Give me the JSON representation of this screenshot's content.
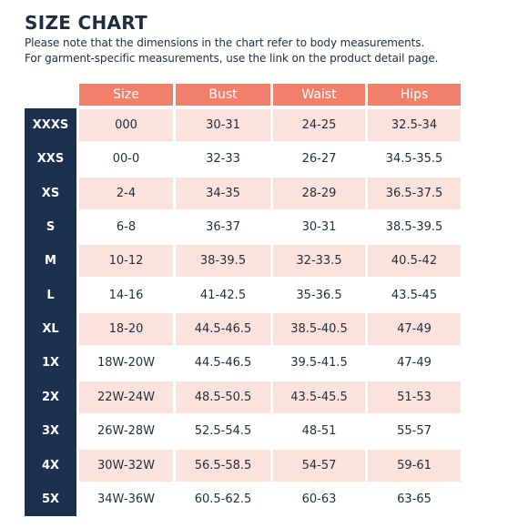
{
  "title": "SIZE CHART",
  "note_line1": "Please note that the dimensions in the chart refer to body measurements.",
  "note_line2": "For garment-specific measurements, use the link on the product detail page.",
  "colors": {
    "header_bg": "#f0806c",
    "row_label_bg": "#1c3050",
    "stripe_bg": "#fbe2dc"
  },
  "columns": [
    "Size",
    "Bust",
    "Waist",
    "Hips"
  ],
  "rows": [
    {
      "label": "XXXS",
      "size": "000",
      "bust": "30-31",
      "waist": "24-25",
      "hips": "32.5-34"
    },
    {
      "label": "XXS",
      "size": "00-0",
      "bust": "32-33",
      "waist": "26-27",
      "hips": "34.5-35.5"
    },
    {
      "label": "XS",
      "size": "2-4",
      "bust": "34-35",
      "waist": "28-29",
      "hips": "36.5-37.5"
    },
    {
      "label": "S",
      "size": "6-8",
      "bust": "36-37",
      "waist": "30-31",
      "hips": "38.5-39.5"
    },
    {
      "label": "M",
      "size": "10-12",
      "bust": "38-39.5",
      "waist": "32-33.5",
      "hips": "40.5-42"
    },
    {
      "label": "L",
      "size": "14-16",
      "bust": "41-42.5",
      "waist": "35-36.5",
      "hips": "43.5-45"
    },
    {
      "label": "XL",
      "size": "18-20",
      "bust": "44.5-46.5",
      "waist": "38.5-40.5",
      "hips": "47-49"
    },
    {
      "label": "1X",
      "size": "18W-20W",
      "bust": "44.5-46.5",
      "waist": "39.5-41.5",
      "hips": "47-49"
    },
    {
      "label": "2X",
      "size": "22W-24W",
      "bust": "48.5-50.5",
      "waist": "43.5-45.5",
      "hips": "51-53"
    },
    {
      "label": "3X",
      "size": "26W-28W",
      "bust": "52.5-54.5",
      "waist": "48-51",
      "hips": "55-57"
    },
    {
      "label": "4X",
      "size": "30W-32W",
      "bust": "56.5-58.5",
      "waist": "54-57",
      "hips": "59-61"
    },
    {
      "label": "5X",
      "size": "34W-36W",
      "bust": "60.5-62.5",
      "waist": "60-63",
      "hips": "63-65"
    }
  ]
}
